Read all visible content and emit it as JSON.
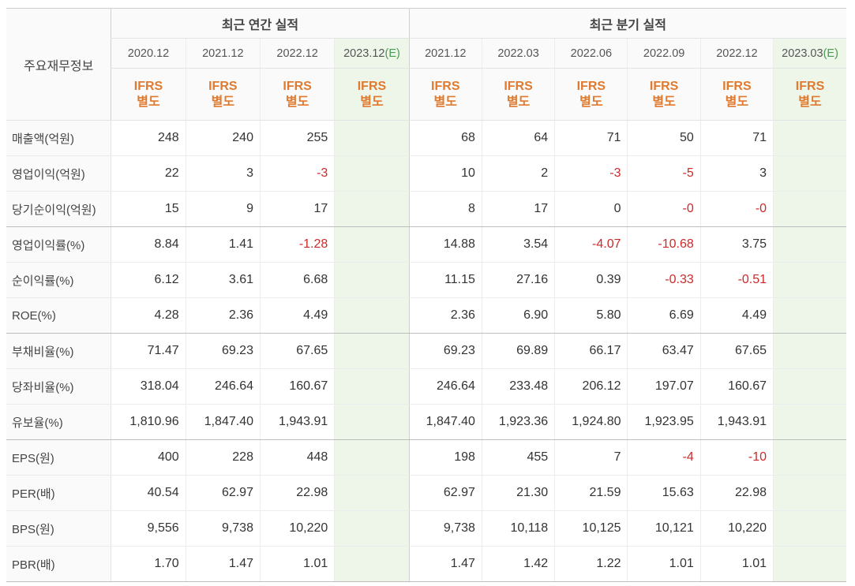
{
  "header": {
    "row_label": "주요재무정보",
    "annual_title": "최근 연간 실적",
    "quarter_title": "최근 분기 실적",
    "annual_periods": [
      "2020.12",
      "2021.12",
      "2022.12",
      "2023.12"
    ],
    "quarter_periods": [
      "2021.12",
      "2022.03",
      "2022.06",
      "2022.09",
      "2022.12",
      "2023.03"
    ],
    "estimate_marker": "(E)",
    "ifrs_line1": "IFRS",
    "ifrs_line2": "별도"
  },
  "colors": {
    "ifrs_text": "#e07a2f",
    "negative_value": "#cc2a2a",
    "estimate_bg": "#eef6ea",
    "estimate_marker": "#4a9a52"
  },
  "rows": [
    {
      "label": "매출액(억원)",
      "annual": [
        "248",
        "240",
        "255",
        ""
      ],
      "quarter": [
        "68",
        "64",
        "71",
        "50",
        "71",
        ""
      ]
    },
    {
      "label": "영업이익(억원)",
      "annual": [
        "22",
        "3",
        "-3",
        ""
      ],
      "quarter": [
        "10",
        "2",
        "-3",
        "-5",
        "3",
        ""
      ]
    },
    {
      "label": "당기순이익(억원)",
      "annual": [
        "15",
        "9",
        "17",
        ""
      ],
      "quarter": [
        "8",
        "17",
        "0",
        "-0",
        "-0",
        ""
      ]
    },
    {
      "label": "영업이익률(%)",
      "annual": [
        "8.84",
        "1.41",
        "-1.28",
        ""
      ],
      "quarter": [
        "14.88",
        "3.54",
        "-4.07",
        "-10.68",
        "3.75",
        ""
      ]
    },
    {
      "label": "순이익률(%)",
      "annual": [
        "6.12",
        "3.61",
        "6.68",
        ""
      ],
      "quarter": [
        "11.15",
        "27.16",
        "0.39",
        "-0.33",
        "-0.51",
        ""
      ]
    },
    {
      "label": "ROE(%)",
      "annual": [
        "4.28",
        "2.36",
        "4.49",
        ""
      ],
      "quarter": [
        "2.36",
        "6.90",
        "5.80",
        "6.69",
        "4.49",
        ""
      ]
    },
    {
      "label": "부채비율(%)",
      "annual": [
        "71.47",
        "69.23",
        "67.65",
        ""
      ],
      "quarter": [
        "69.23",
        "69.89",
        "66.17",
        "63.47",
        "67.65",
        ""
      ]
    },
    {
      "label": "당좌비율(%)",
      "annual": [
        "318.04",
        "246.64",
        "160.67",
        ""
      ],
      "quarter": [
        "246.64",
        "233.48",
        "206.12",
        "197.07",
        "160.67",
        ""
      ]
    },
    {
      "label": "유보율(%)",
      "annual": [
        "1,810.96",
        "1,847.40",
        "1,943.91",
        ""
      ],
      "quarter": [
        "1,847.40",
        "1,923.36",
        "1,924.80",
        "1,923.95",
        "1,943.91",
        ""
      ]
    },
    {
      "label": "EPS(원)",
      "annual": [
        "400",
        "228",
        "448",
        ""
      ],
      "quarter": [
        "198",
        "455",
        "7",
        "-4",
        "-10",
        ""
      ]
    },
    {
      "label": "PER(배)",
      "annual": [
        "40.54",
        "62.97",
        "22.98",
        ""
      ],
      "quarter": [
        "62.97",
        "21.30",
        "21.59",
        "15.63",
        "22.98",
        ""
      ]
    },
    {
      "label": "BPS(원)",
      "annual": [
        "9,556",
        "9,738",
        "10,220",
        ""
      ],
      "quarter": [
        "9,738",
        "10,118",
        "10,125",
        "10,121",
        "10,220",
        ""
      ]
    },
    {
      "label": "PBR(배)",
      "annual": [
        "1.70",
        "1.47",
        "1.01",
        ""
      ],
      "quarter": [
        "1.47",
        "1.42",
        "1.22",
        "1.01",
        "1.01",
        ""
      ]
    }
  ]
}
